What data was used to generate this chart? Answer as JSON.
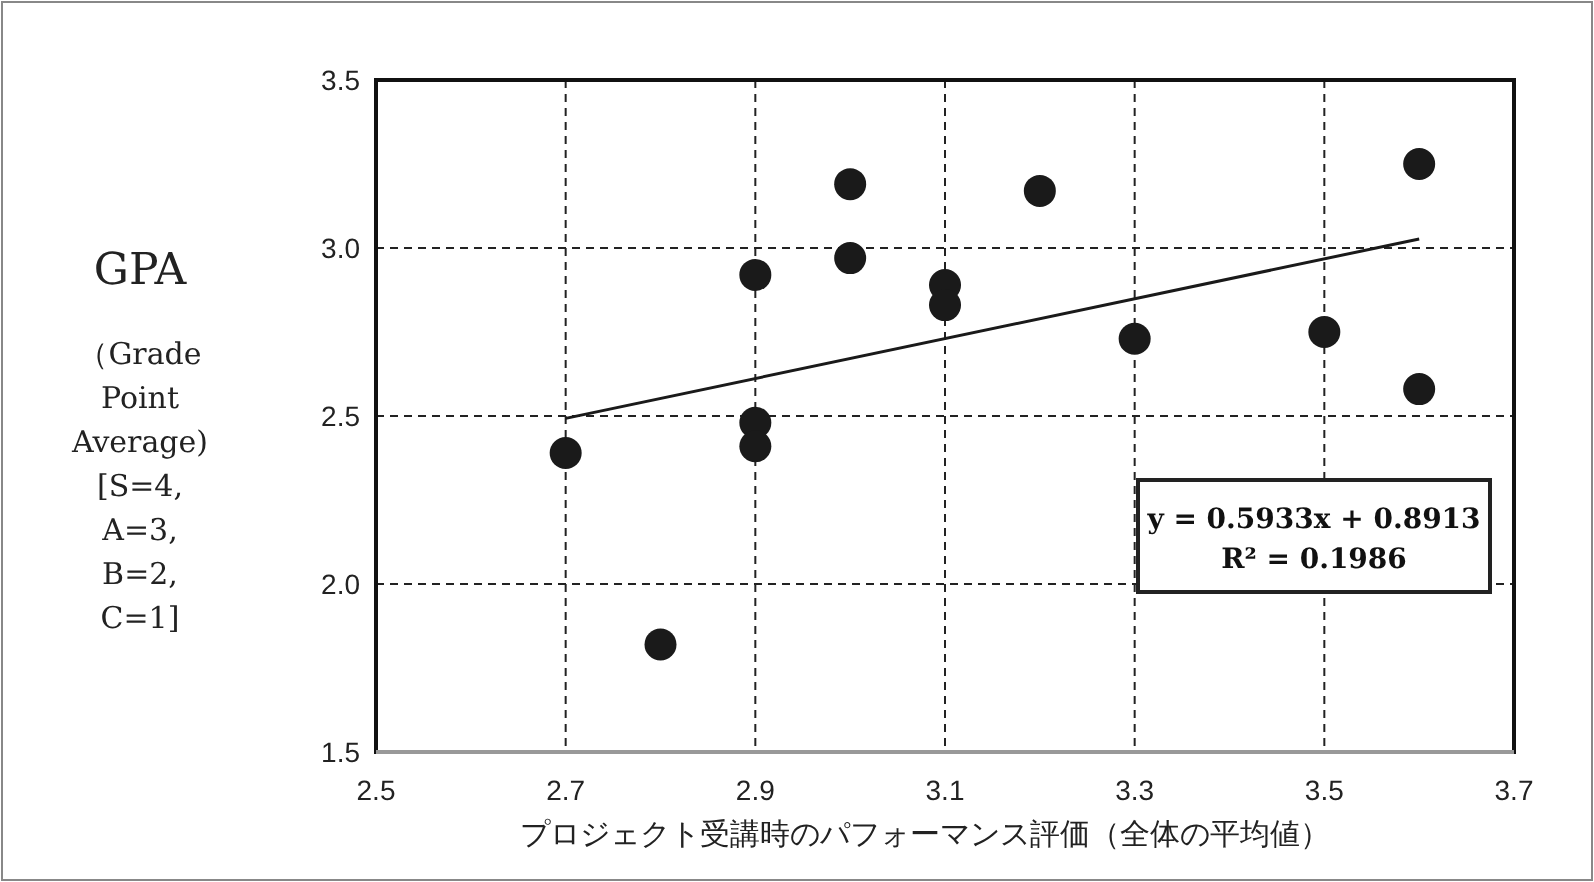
{
  "chart_data": {
    "type": "scatter",
    "ylabel": "GPA\n（Grade\nPoint\nAverage)\n[S=4,\nA=3,\nB=2,\nC=1]",
    "xlabel": "プロジェクト受講時のパフォーマンス評価（全体の平均値）",
    "series": [
      {
        "color": "#1a1a1a",
        "marker": "circle",
        "x": [
          2.7,
          2.8,
          2.9,
          2.9,
          2.9,
          3.0,
          3.0,
          3.1,
          3.1,
          3.2,
          3.3,
          3.5,
          3.6,
          3.6
        ],
        "values": [
          2.39,
          1.82,
          2.92,
          2.48,
          2.41,
          3.19,
          2.97,
          2.89,
          2.83,
          3.17,
          2.73,
          2.75,
          3.25,
          2.58
        ]
      },
      {
        "type": "line",
        "color": "#1a1a1a",
        "marker": "none",
        "x": [
          2.7,
          3.6
        ],
        "values": [
          2.493,
          3.027
        ]
      }
    ],
    "annotations": [
      "y = 0.5933x + 0.8913\nR² = 0.1986"
    ],
    "xlim": [
      2.5,
      3.7
    ],
    "xticks": [
      2.5,
      2.7,
      2.9,
      3.1,
      3.3,
      3.5,
      3.7
    ],
    "ylim": [
      1.5,
      3.5
    ],
    "yticks": [
      1.5,
      {
        "value": 2,
        "label": "2.0"
      },
      2.5,
      {
        "value": 3,
        "label": "3.0"
      },
      3.5
    ],
    "grid": true
  }
}
